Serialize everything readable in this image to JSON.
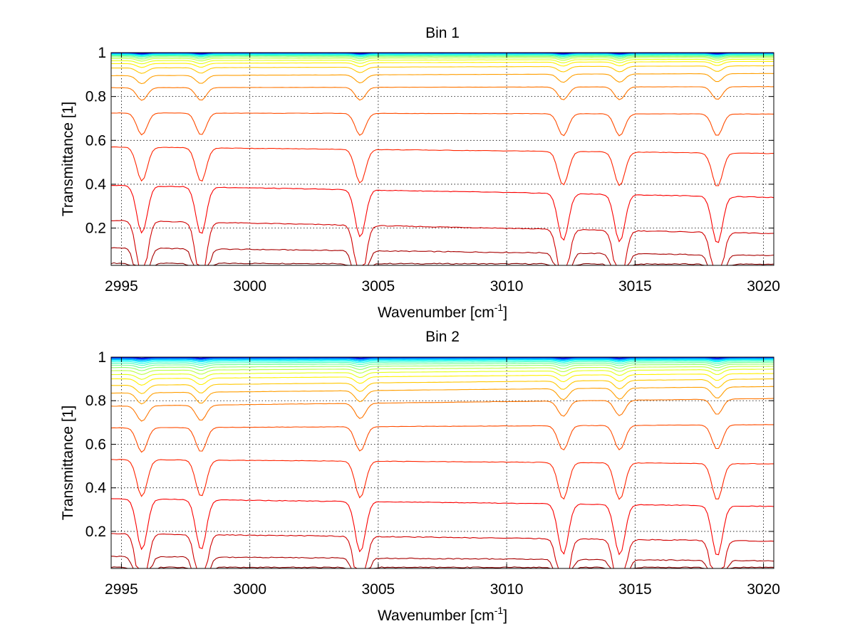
{
  "chart_data": [
    {
      "type": "line",
      "title": "Bin 1",
      "xlabel": "Wavenumber [cm",
      "xlabel_sup": "-1",
      "xlabel_end": "]",
      "ylabel": "Transmittance [1]",
      "xlim": [
        2994.6,
        3020.4
      ],
      "ylim": [
        0.03,
        1.0
      ],
      "xticks": [
        2995,
        3000,
        3005,
        3010,
        3015,
        3020
      ],
      "yticks": [
        0.2,
        0.4,
        0.6,
        0.8,
        1
      ],
      "ytick_labels": [
        "0.2",
        "0.4",
        "0.6",
        "0.8",
        "1"
      ],
      "grid": true,
      "colormap": "jet",
      "series_count": 24,
      "series_color_range": [
        "#0000ff",
        "#7f0000"
      ],
      "line_levels": [
        {
          "start": 0.04,
          "end": 0.035
        },
        {
          "start": 0.11,
          "end": 0.075
        },
        {
          "start": 0.235,
          "end": 0.175
        },
        {
          "start": 0.395,
          "end": 0.34
        },
        {
          "start": 0.57,
          "end": 0.54
        },
        {
          "start": 0.725,
          "end": 0.72
        },
        {
          "start": 0.84,
          "end": 0.845
        },
        {
          "start": 0.895,
          "end": 0.905
        },
        {
          "start": 0.93,
          "end": 0.94
        },
        {
          "start": 0.95,
          "end": 0.96
        },
        {
          "start": 0.963,
          "end": 0.97
        },
        {
          "start": 0.973,
          "end": 0.978
        },
        {
          "start": 0.98,
          "end": 0.983
        },
        {
          "start": 0.985,
          "end": 0.987
        },
        {
          "start": 0.989,
          "end": 0.99
        },
        {
          "start": 0.992,
          "end": 0.993
        },
        {
          "start": 0.994,
          "end": 0.995
        },
        {
          "start": 0.996,
          "end": 0.996
        },
        {
          "start": 0.997,
          "end": 0.997
        },
        {
          "start": 0.998,
          "end": 0.998
        },
        {
          "start": 0.999,
          "end": 0.999
        },
        {
          "start": 0.999,
          "end": 0.999
        },
        {
          "start": 1.0,
          "end": 1.0
        },
        {
          "start": 1.0,
          "end": 1.0
        }
      ],
      "absorption_lines": [
        2995.8,
        2998.1,
        3004.3,
        3012.2,
        3014.4,
        3018.2
      ]
    },
    {
      "type": "line",
      "title": "Bin 2",
      "xlabel": "Wavenumber [cm",
      "xlabel_sup": "-1",
      "xlabel_end": "]",
      "ylabel": "Transmittance [1]",
      "xlim": [
        2994.6,
        3020.4
      ],
      "ylim": [
        0.03,
        1.0
      ],
      "xticks": [
        2995,
        3000,
        3005,
        3010,
        3015,
        3020
      ],
      "yticks": [
        0.2,
        0.4,
        0.6,
        0.8,
        1
      ],
      "ytick_labels": [
        "0.2",
        "0.4",
        "0.6",
        "0.8",
        "1"
      ],
      "grid": true,
      "colormap": "jet",
      "series_count": 24,
      "series_color_range": [
        "#0000ff",
        "#7f0000"
      ],
      "line_levels": [
        {
          "start": 0.035,
          "end": 0.035
        },
        {
          "start": 0.085,
          "end": 0.065
        },
        {
          "start": 0.19,
          "end": 0.155
        },
        {
          "start": 0.35,
          "end": 0.315
        },
        {
          "start": 0.53,
          "end": 0.51
        },
        {
          "start": 0.675,
          "end": 0.69
        },
        {
          "start": 0.775,
          "end": 0.81
        },
        {
          "start": 0.835,
          "end": 0.865
        },
        {
          "start": 0.87,
          "end": 0.9
        },
        {
          "start": 0.9,
          "end": 0.925
        },
        {
          "start": 0.92,
          "end": 0.945
        },
        {
          "start": 0.938,
          "end": 0.958
        },
        {
          "start": 0.952,
          "end": 0.968
        },
        {
          "start": 0.963,
          "end": 0.976
        },
        {
          "start": 0.972,
          "end": 0.982
        },
        {
          "start": 0.979,
          "end": 0.987
        },
        {
          "start": 0.985,
          "end": 0.99
        },
        {
          "start": 0.989,
          "end": 0.993
        },
        {
          "start": 0.992,
          "end": 0.995
        },
        {
          "start": 0.995,
          "end": 0.997
        },
        {
          "start": 0.997,
          "end": 0.998
        },
        {
          "start": 0.998,
          "end": 0.999
        },
        {
          "start": 0.999,
          "end": 1.0
        },
        {
          "start": 1.0,
          "end": 1.0
        }
      ],
      "absorption_lines": [
        2995.8,
        2998.1,
        3004.3,
        3012.2,
        3014.4,
        3018.2
      ]
    }
  ]
}
